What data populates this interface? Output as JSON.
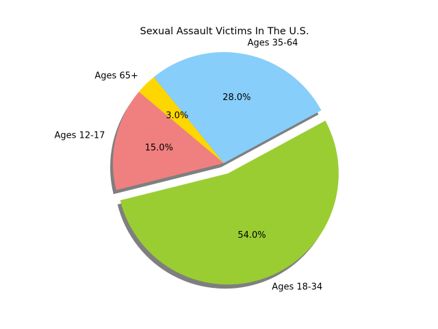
{
  "chart_data": {
    "type": "pie",
    "title": "Sexual Assault Victims In The U.S.",
    "labels": [
      "Ages 12-17",
      "Ages 18-34",
      "Ages 35-64",
      "Ages 65+"
    ],
    "values": [
      15.0,
      54.0,
      28.0,
      3.0
    ],
    "percent_labels": [
      "15.0%",
      "54.0%",
      "28.0%",
      "3.0%"
    ],
    "colors": [
      "#f08080",
      "#9acd32",
      "#87cefa",
      "#ffd700"
    ],
    "explode": [
      0,
      0.1,
      0,
      0
    ],
    "shadow": true,
    "start_angle_deg": 140,
    "direction": "counterclockwise"
  }
}
